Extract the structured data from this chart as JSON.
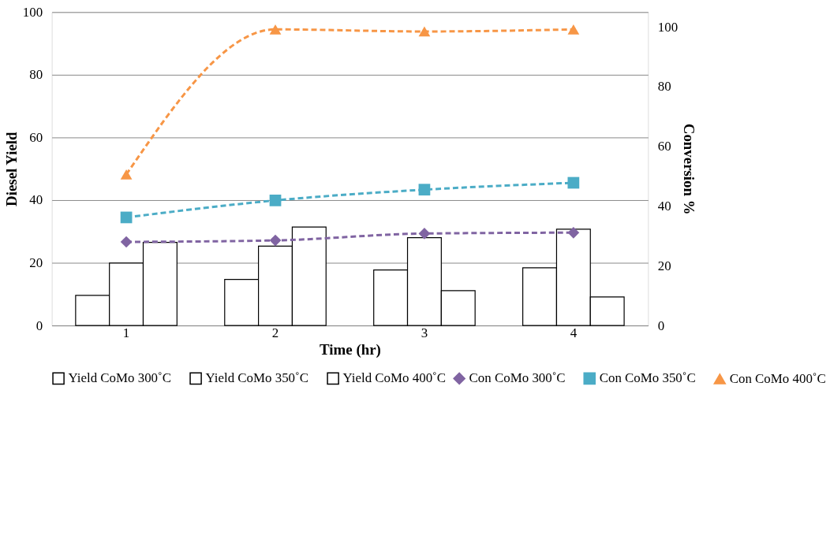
{
  "chart_data": {
    "type": "bar",
    "xlabel": "Time (hr)",
    "ylabel": "Diesel Yield",
    "y2label": "Conversion %",
    "categories": [
      "1",
      "2",
      "3",
      "4"
    ],
    "series": [
      {
        "name": "Yield CoMo 300˚C",
        "color": "#ffffff",
        "values": [
          9.6,
          14.7,
          17.7,
          18.4
        ]
      },
      {
        "name": "Yield CoMo 350˚C",
        "color": "#ffffff",
        "values": [
          19.9,
          25.3,
          28.0,
          30.7
        ]
      },
      {
        "name": "Yield CoMo 400˚C",
        "color": "#ffffff",
        "values": [
          26.5,
          31.4,
          11.1,
          9.1
        ]
      },
      {
        "name": "Con CoMo 300˚C",
        "type": "line",
        "axis": "y2",
        "marker": "diamond",
        "line_style": "dashed",
        "color": "#8064a2",
        "values": [
          28.0,
          28.5,
          30.8,
          31.1
        ]
      },
      {
        "name": "Con CoMo 350˚C",
        "type": "line",
        "axis": "y2",
        "marker": "square",
        "line_style": "dashed",
        "color": "#4bacc6",
        "values": [
          36.2,
          41.9,
          45.5,
          47.8
        ]
      },
      {
        "name": "Con CoMo 400˚C",
        "type": "line",
        "axis": "y2",
        "marker": "triangle",
        "line_style": "dashed",
        "color": "#f79646",
        "values": [
          50.6,
          99.2,
          98.5,
          99.2
        ]
      }
    ],
    "ylim": [
      0,
      100
    ],
    "yticks": [
      0,
      20,
      40,
      60,
      80,
      100
    ],
    "y2lim": [
      0,
      105
    ],
    "y2ticks": [
      0,
      20,
      40,
      60,
      80,
      100
    ],
    "grid": "y",
    "legend": "bottom"
  }
}
